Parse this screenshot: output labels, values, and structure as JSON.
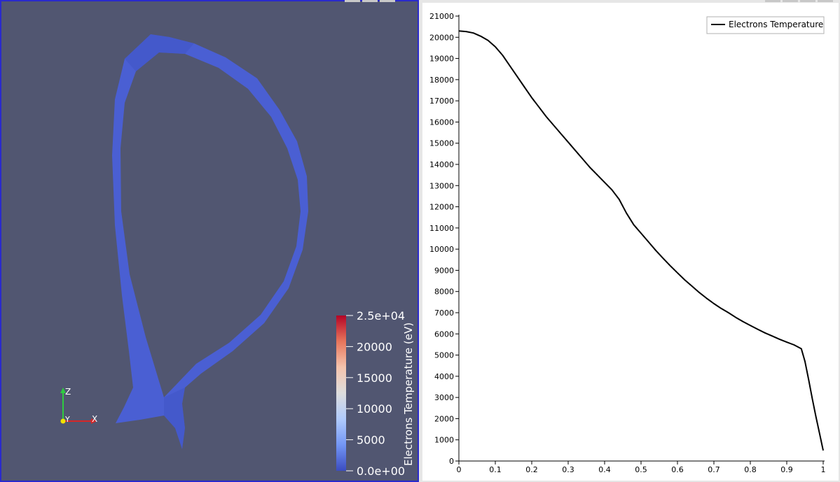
{
  "render_view": {
    "colors": {
      "background": "#515671",
      "surface": "#4a5fd3",
      "border": "#2a2acc"
    },
    "axes": {
      "z_label": "Z",
      "y_label": "Y",
      "x_label": "X"
    },
    "color_legend": {
      "title": "Electrons Temperature (eV)",
      "labels": [
        "2.5e+04",
        "20000",
        "15000",
        "10000",
        "5000",
        "0.0e+00"
      ],
      "values": [
        25000,
        20000,
        15000,
        10000,
        5000,
        0
      ],
      "range": [
        0,
        25000
      ],
      "colormap": [
        "#3b4cc0",
        "#7396f5",
        "#b0cbfc",
        "#dddddd",
        "#f5c4ad",
        "#e7755b",
        "#b40426"
      ]
    }
  },
  "chart_view": {
    "colors": {
      "line": "#000000",
      "axis": "#000000",
      "background": "#ffffff"
    },
    "chart_data": {
      "type": "line",
      "xlim": [
        0,
        1
      ],
      "ylim": [
        0,
        21000
      ],
      "x_ticks": [
        0,
        0.1,
        0.2,
        0.3,
        0.4,
        0.5,
        0.6,
        0.7,
        0.8,
        0.9,
        1
      ],
      "x_tick_labels": [
        "0",
        "0.1",
        "0.2",
        "0.3",
        "0.4",
        "0.5",
        "0.6",
        "0.7",
        "0.8",
        "0.9",
        "1"
      ],
      "y_ticks": [
        0,
        1000,
        2000,
        3000,
        4000,
        5000,
        6000,
        7000,
        8000,
        9000,
        10000,
        11000,
        12000,
        13000,
        14000,
        15000,
        16000,
        17000,
        18000,
        19000,
        20000,
        21000
      ],
      "y_tick_labels": [
        "0",
        "1000",
        "2000",
        "3000",
        "4000",
        "5000",
        "6000",
        "7000",
        "8000",
        "9000",
        "10000",
        "11000",
        "12000",
        "13000",
        "14000",
        "15000",
        "16000",
        "17000",
        "18000",
        "19000",
        "20000",
        "21000"
      ],
      "grid": false,
      "legend_position": "top-right",
      "series": [
        {
          "name": "Electrons Temperature",
          "color": "#000000",
          "x": [
            0,
            0.02,
            0.04,
            0.06,
            0.08,
            0.1,
            0.12,
            0.14,
            0.16,
            0.18,
            0.2,
            0.22,
            0.24,
            0.26,
            0.28,
            0.3,
            0.32,
            0.34,
            0.36,
            0.38,
            0.4,
            0.42,
            0.44,
            0.46,
            0.48,
            0.5,
            0.52,
            0.54,
            0.56,
            0.58,
            0.6,
            0.62,
            0.64,
            0.66,
            0.68,
            0.7,
            0.72,
            0.74,
            0.76,
            0.78,
            0.8,
            0.82,
            0.84,
            0.86,
            0.88,
            0.9,
            0.92,
            0.94,
            0.95,
            0.96,
            0.97,
            0.98,
            0.99,
            1.0
          ],
          "y": [
            20300,
            20270,
            20200,
            20050,
            19850,
            19550,
            19150,
            18650,
            18150,
            17650,
            17150,
            16700,
            16250,
            15850,
            15450,
            15050,
            14650,
            14250,
            13850,
            13500,
            13150,
            12800,
            12350,
            11700,
            11150,
            10750,
            10350,
            9950,
            9580,
            9220,
            8880,
            8550,
            8250,
            7950,
            7680,
            7430,
            7200,
            7000,
            6780,
            6580,
            6400,
            6220,
            6050,
            5900,
            5750,
            5610,
            5480,
            5300,
            4700,
            3850,
            2950,
            2100,
            1300,
            500
          ]
        }
      ]
    }
  }
}
